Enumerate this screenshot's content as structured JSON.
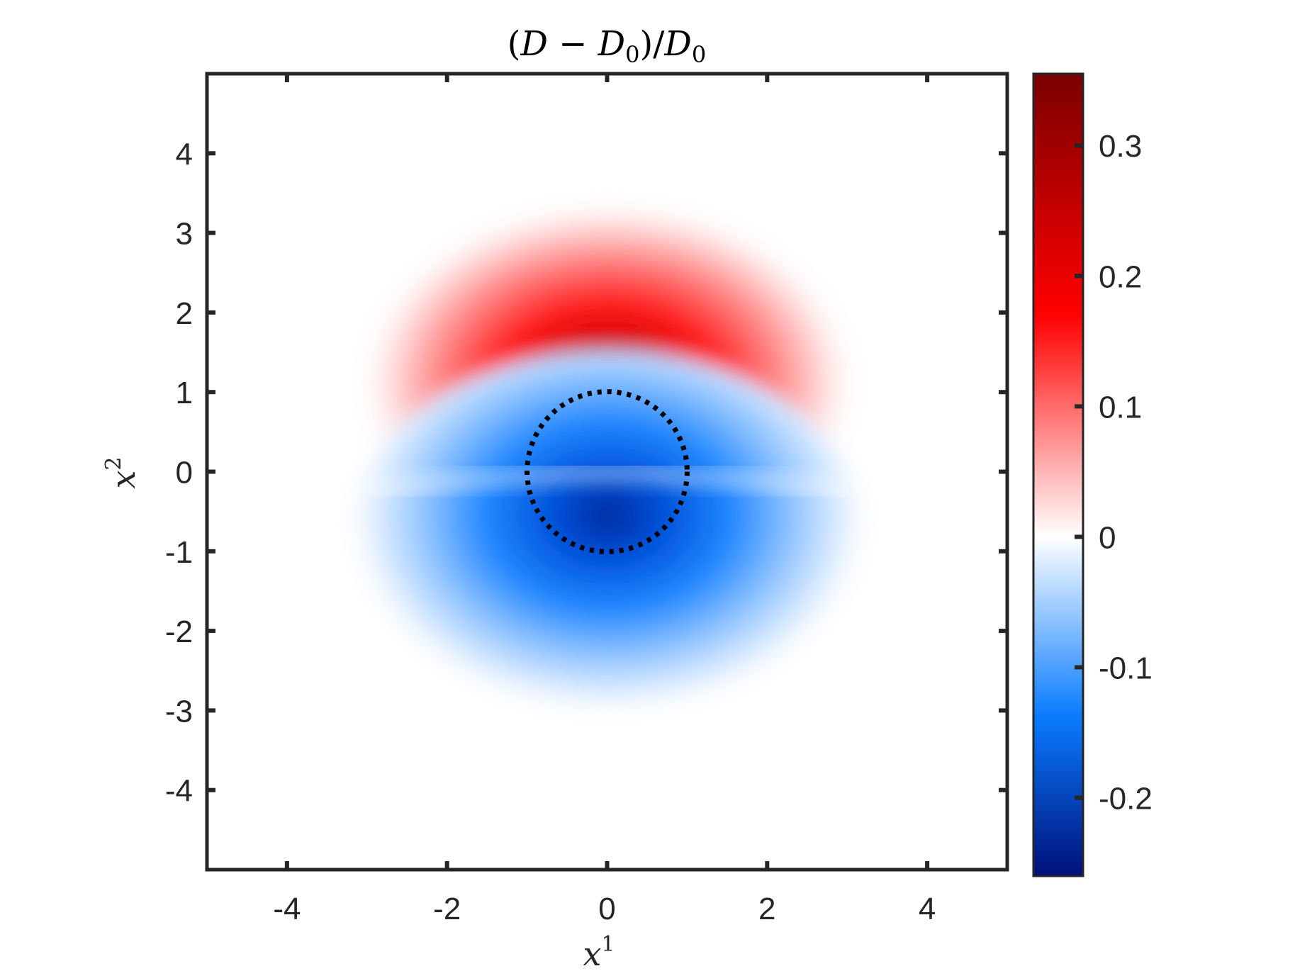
{
  "chart_data": {
    "type": "heatmap",
    "title_parts": {
      "open": "(",
      "d": "D",
      "minus": " − ",
      "d0": "D",
      "sub0": "0",
      "close_div": ")/",
      "d0b": "D",
      "sub0b": "0"
    },
    "xlabel": {
      "base": "x",
      "sup": "1"
    },
    "ylabel": {
      "base": "x",
      "sup": "2"
    },
    "xlim": [
      -5,
      5
    ],
    "ylim": [
      -5,
      5
    ],
    "x_ticks": [
      -4,
      -2,
      0,
      2,
      4
    ],
    "x_tick_labels": [
      "-4",
      "-2",
      "0",
      "2",
      "4"
    ],
    "y_ticks": [
      4,
      3,
      2,
      1,
      0,
      -1,
      -2,
      -3,
      -4
    ],
    "y_tick_labels": [
      "4",
      "3",
      "2",
      "1",
      "0",
      "-1",
      "-2",
      "-3",
      "-4"
    ],
    "colorbar": {
      "range": [
        -0.26,
        0.355
      ],
      "ticks": [
        0.3,
        0.2,
        0.1,
        0,
        -0.1,
        -0.2
      ],
      "tick_labels": [
        "0.3",
        "0.2",
        "0.1",
        "0",
        "-0.1",
        "-0.2"
      ],
      "colors": {
        "max": "#7a0000",
        "high": "#ff0000",
        "mid": "#ffffff",
        "low": "#0080ff",
        "min": "#00107a"
      }
    },
    "field": {
      "peak_positive": {
        "x": 0,
        "y": 1.3,
        "value": 0.355
      },
      "peak_negative": {
        "x": 0,
        "y": -1.1,
        "value": -0.26
      }
    },
    "overlay_circle": {
      "center": [
        0,
        0
      ],
      "radius": 1,
      "style": "dotted",
      "color": "#000000"
    }
  }
}
